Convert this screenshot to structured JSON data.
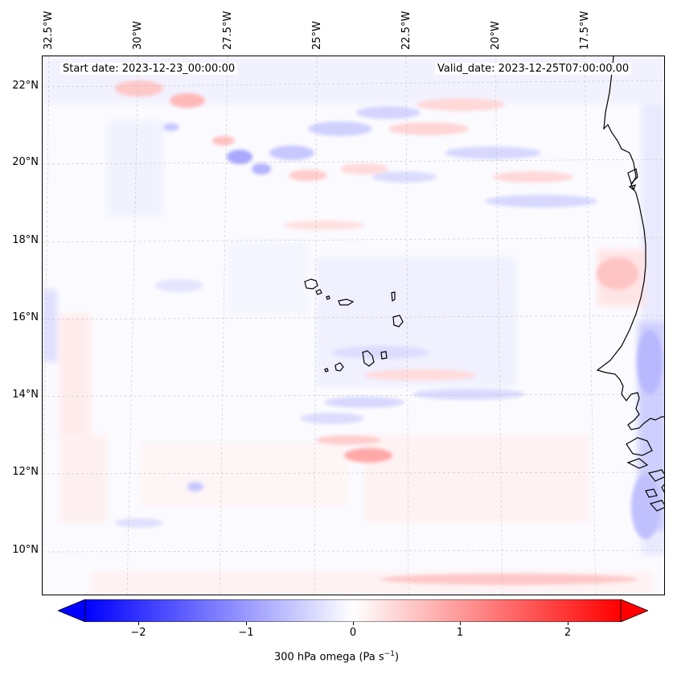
{
  "map": {
    "lon_ticks": [
      "32.5°W",
      "30°W",
      "27.5°W",
      "25°W",
      "22.5°W",
      "20°W",
      "17.5°W"
    ],
    "lat_ticks": [
      "22°N",
      "20°N",
      "18°N",
      "16°N",
      "14°N",
      "12°N",
      "10°N"
    ],
    "start_date": "Start date: 2023-12-23_00:00:00",
    "valid_date": "Valid_date: 2023-12-25T07:00:00.00"
  },
  "colorbar": {
    "ticks": [
      "−2",
      "−1",
      "0",
      "1",
      "2"
    ],
    "label_main": "300 hPa omega (Pa s",
    "label_sup": "−1",
    "label_end": ")",
    "range": [
      -2.7,
      2.7
    ],
    "min_color": "#0000ff",
    "mid_color": "#ffffff",
    "max_color": "#ff0000"
  }
}
